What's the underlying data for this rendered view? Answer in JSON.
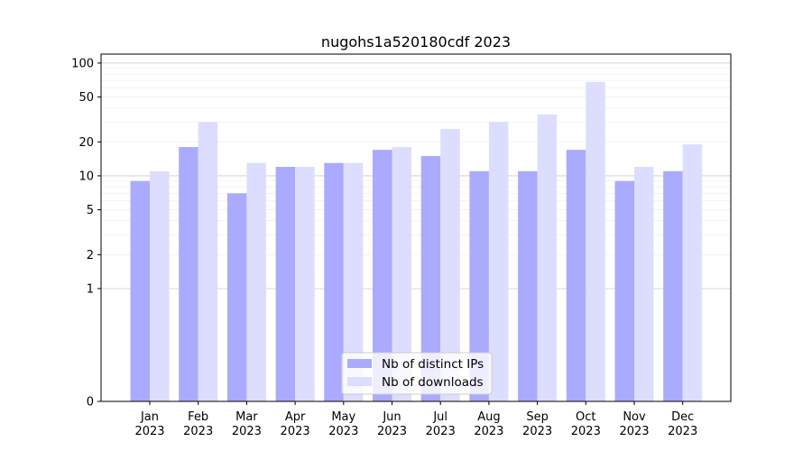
{
  "chart_data": {
    "type": "bar",
    "title": "nugohs1a520180cdf 2023",
    "xlabel": "",
    "ylabel": "",
    "yscale": "symlog",
    "ylim": [
      0,
      120
    ],
    "yticks": [
      0,
      1,
      2,
      5,
      10,
      20,
      50,
      100
    ],
    "categories": [
      "Jan\n2023",
      "Feb\n2023",
      "Mar\n2023",
      "Apr\n2023",
      "May\n2023",
      "Jun\n2023",
      "Jul\n2023",
      "Aug\n2023",
      "Sep\n2023",
      "Oct\n2023",
      "Nov\n2023",
      "Dec\n2023"
    ],
    "series": [
      {
        "name": "Nb of distinct IPs",
        "color": "#aaaaff",
        "values": [
          9,
          18,
          7,
          12,
          13,
          17,
          15,
          11,
          11,
          17,
          9,
          11
        ]
      },
      {
        "name": "Nb of downloads",
        "color": "#ddddff",
        "values": [
          11,
          30,
          13,
          12,
          13,
          18,
          26,
          30,
          35,
          68,
          12,
          19
        ]
      }
    ],
    "grid": true,
    "legend_position": "bottom-center"
  }
}
